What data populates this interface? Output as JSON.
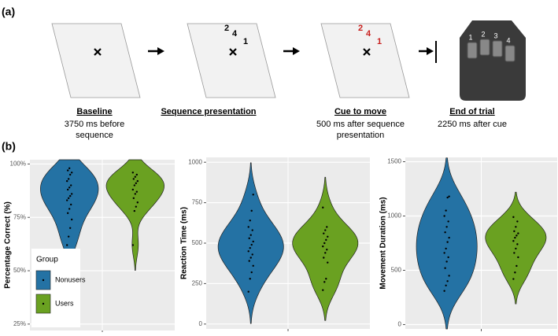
{
  "panel_a": {
    "label": "(a)",
    "steps": [
      {
        "title": "Baseline",
        "caption": [
          "3750 ms before",
          "sequence"
        ]
      },
      {
        "title": "Sequence presentation",
        "caption": []
      },
      {
        "title": "Cue to move",
        "caption": [
          "500 ms after sequence",
          "presentation"
        ]
      },
      {
        "title": "End of trial",
        "caption": [
          "2250 ms after cue"
        ]
      }
    ],
    "sequence_digits": [
      "2",
      "4",
      "1"
    ],
    "cue_digits": [
      "2",
      "4",
      "1"
    ],
    "device_keys": [
      "1",
      "2",
      "3",
      "4"
    ]
  },
  "panel_b_label": "(b)",
  "chart_data": [
    {
      "type": "violin",
      "y_label": "Percentage Correct (%)",
      "ylim": [
        22,
        102
      ],
      "yticks": [
        {
          "value": 25,
          "label": "25%"
        },
        {
          "value": 50,
          "label": "50%"
        },
        {
          "value": 75,
          "label": "75%"
        },
        {
          "value": 100,
          "label": "100%"
        }
      ],
      "grid": true,
      "legend": "bottom-left",
      "legend_title": "Group",
      "series": [
        {
          "name": "Nonusers",
          "color": "#2472a4",
          "values": [
            62,
            66,
            70,
            74,
            77,
            79,
            81,
            83,
            84,
            85,
            86,
            88,
            89,
            90,
            92,
            93,
            95,
            96,
            97,
            98
          ]
        },
        {
          "name": "Users",
          "color": "#6aa121",
          "values": [
            62,
            78,
            80,
            82,
            84,
            86,
            87,
            88,
            90,
            91,
            92,
            93,
            94,
            95,
            96
          ]
        }
      ]
    },
    {
      "type": "violin",
      "y_label": "Reaction Time (ms)",
      "ylim": [
        -30,
        1030
      ],
      "yticks": [
        0,
        250,
        500,
        750,
        1000
      ],
      "grid": true,
      "legend": false,
      "series": [
        {
          "name": "Nonusers",
          "color": "#2472a4",
          "values": [
            200,
            280,
            320,
            360,
            390,
            410,
            430,
            450,
            470,
            490,
            510,
            530,
            550,
            580,
            600,
            640,
            700,
            800
          ]
        },
        {
          "name": "Users",
          "color": "#6aa121",
          "values": [
            210,
            260,
            280,
            380,
            410,
            440,
            460,
            480,
            500,
            520,
            540,
            560,
            580,
            600,
            720
          ]
        }
      ]
    },
    {
      "type": "violin",
      "y_label": "Movement Duration (ms)",
      "ylim": [
        -40,
        1540
      ],
      "yticks": [
        0,
        500,
        1000,
        1500
      ],
      "grid": true,
      "legend": false,
      "series": [
        {
          "name": "Nonusers",
          "color": "#2472a4",
          "values": [
            310,
            360,
            400,
            450,
            520,
            580,
            620,
            660,
            700,
            760,
            800,
            850,
            900,
            950,
            1000,
            1050,
            1170,
            1180
          ]
        },
        {
          "name": "Users",
          "color": "#6aa121",
          "values": [
            420,
            480,
            540,
            620,
            660,
            700,
            740,
            770,
            800,
            820,
            840,
            860,
            900,
            950,
            990
          ]
        }
      ]
    }
  ]
}
